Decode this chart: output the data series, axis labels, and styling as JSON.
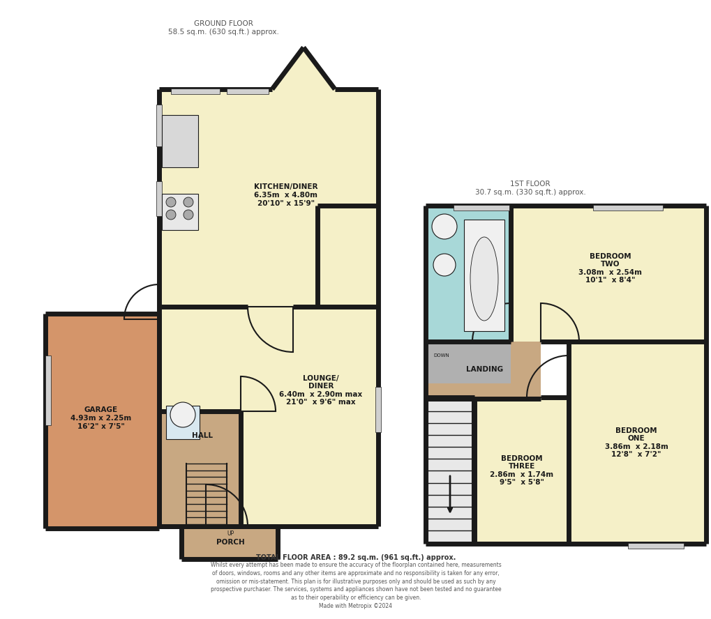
{
  "bg_color": "#ffffff",
  "wall_color": "#1a1a1a",
  "wall_lw": 4,
  "colors": {
    "kitchen": "#f5f0c8",
    "lounge": "#f5f0c8",
    "hall": "#c8a882",
    "garage": "#d4956a",
    "porch": "#c8a882",
    "bedroom_one": "#f5f0c8",
    "bedroom_two": "#f5f0c8",
    "bedroom_three": "#f5f0c8",
    "landing": "#c8a882",
    "bathroom": "#a8d8d8",
    "en_suite_gray": "#b0b0b0",
    "stairs": "#ffffff",
    "window": "#d0d0d0"
  },
  "ground_floor_label": "GROUND FLOOR\n58.5 sq.m. (630 sq.ft.) approx.",
  "first_floor_label": "1ST FLOOR\n30.7 sq.m. (330 sq.ft.) approx.",
  "total_area_label": "TOTAL FLOOR AREA : 89.2 sq.m. (961 sq.ft.) approx.",
  "disclaimer": "Whilst every attempt has been made to ensure the accuracy of the floorplan contained here, measurements\nof doors, windows, rooms and any other items are approximate and no responsibility is taken for any error,\nomission or mis-statement. This plan is for illustrative purposes only and should be used as such by any\nprospective purchaser. The services, systems and appliances shown have not been tested and no guarantee\nas to their operability or efficiency can be given.\nMade with Metropix ©2024",
  "rooms": {
    "kitchen": {
      "label": "KITCHEN/DINER\n6.35m  x 4.80m\n20'10\" x 15'9\""
    },
    "lounge": {
      "label": "LOUNGE/\nDINER\n6.40m  x 2.90m max\n21'0\"  x 9'6\" max"
    },
    "hall": {
      "label": "HALL"
    },
    "garage": {
      "label": "GARAGE\n4.93m x 2.25m\n16'2\" x 7'5\""
    },
    "porch": {
      "label": "PORCH"
    },
    "bedroom_one": {
      "label": "BEDROOM\nONE\n3.86m  x 2.18m\n12'8\"  x 7'2\""
    },
    "bedroom_two": {
      "label": "BEDROOM\nTWO\n3.08m  x 2.54m\n10'1\"  x 8'4\""
    },
    "bedroom_three": {
      "label": "BEDROOM\nTHREE\n2.86m  x 1.74m\n9'5\"  x 5'8\""
    },
    "landing": {
      "label": "LANDING"
    },
    "down": {
      "label": "DOWN"
    }
  },
  "label_color": "#1a1a1a",
  "label_fontsize": 7.5,
  "small_fontsize": 6
}
